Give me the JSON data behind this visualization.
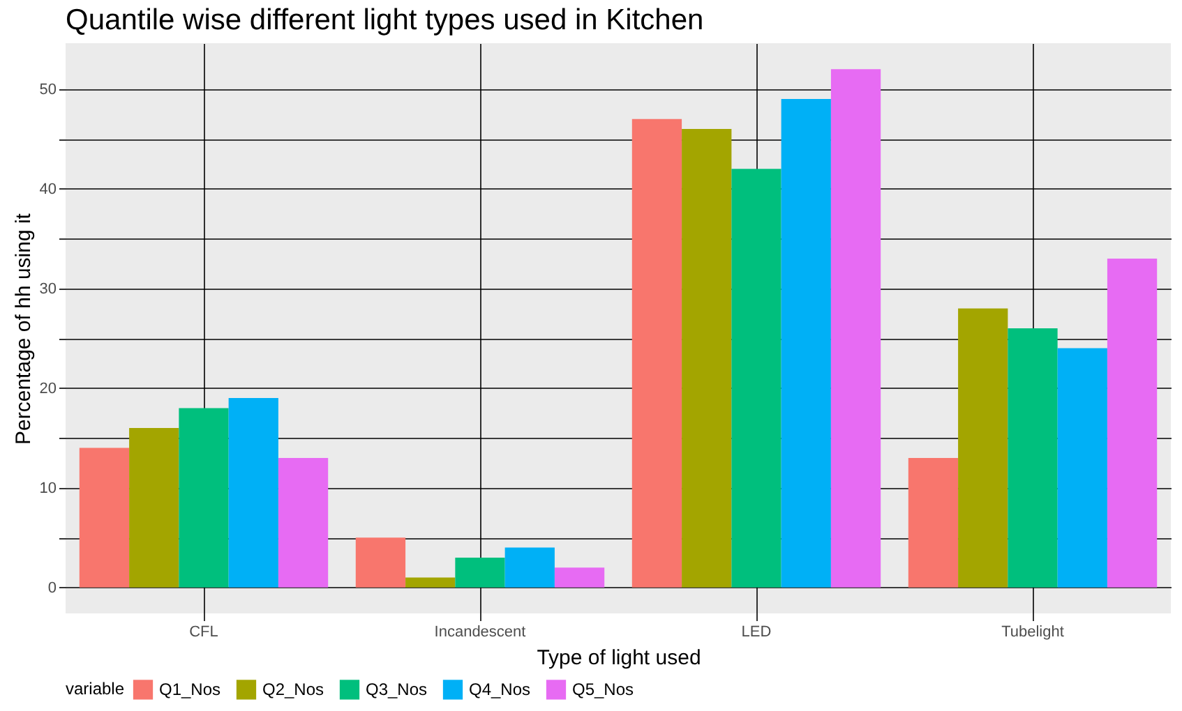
{
  "chart_data": {
    "type": "bar",
    "title": "Quantile wise different light types used in Kitchen",
    "xlabel": "Type of light used",
    "ylabel": "Percentage of hh using it",
    "legend_title": "variable",
    "categories": [
      "CFL",
      "Incandescent",
      "LED",
      "Tubelight"
    ],
    "series": [
      {
        "name": "Q1_Nos",
        "color": "#f8766d",
        "values": [
          14,
          5,
          47,
          13
        ]
      },
      {
        "name": "Q2_Nos",
        "color": "#a3a500",
        "values": [
          16,
          1,
          46,
          28
        ]
      },
      {
        "name": "Q3_Nos",
        "color": "#00bf7d",
        "values": [
          18,
          3,
          42,
          26
        ]
      },
      {
        "name": "Q4_Nos",
        "color": "#00b0f6",
        "values": [
          19,
          4,
          49,
          24
        ]
      },
      {
        "name": "Q5_Nos",
        "color": "#e76bf3",
        "values": [
          13,
          2,
          52,
          33
        ]
      }
    ],
    "ylim": [
      -2.6,
      54.6
    ],
    "yticks": [
      0,
      {
        "value": 5,
        "label": null
      },
      10,
      {
        "value": 15,
        "label": null
      },
      20,
      {
        "value": 25,
        "label": null
      },
      30,
      {
        "value": 35,
        "label": null
      },
      40,
      {
        "value": 45,
        "label": null
      },
      50
    ],
    "grid": true,
    "legend": "bottom"
  }
}
